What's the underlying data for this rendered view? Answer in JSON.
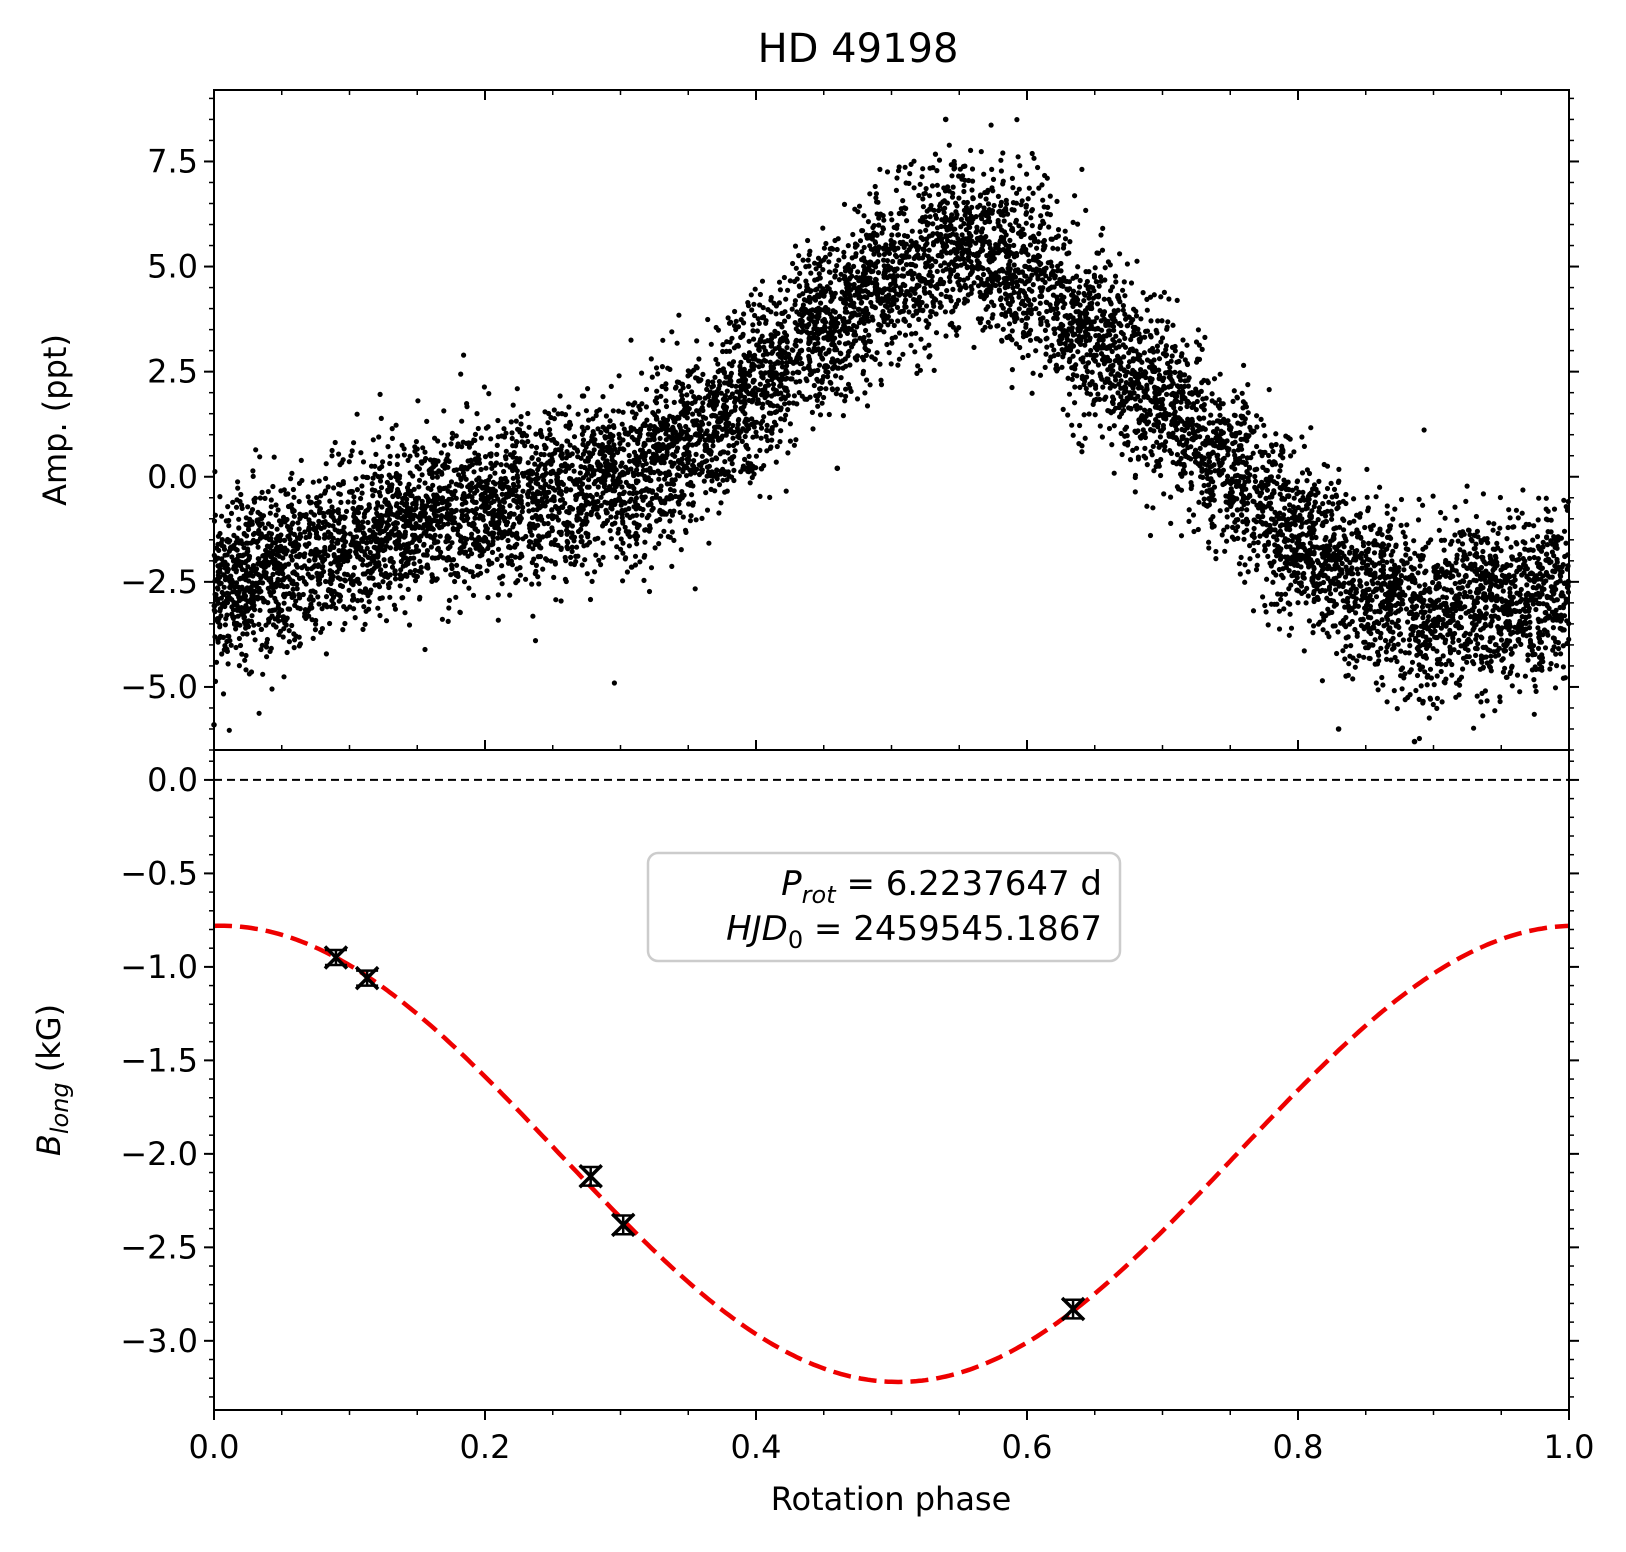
{
  "title": "HD 49198",
  "colors": {
    "points": "#000000",
    "fit": "#ee0000",
    "zero_line": "#000000",
    "box_edge": "#cccccc"
  },
  "chart_data": [
    {
      "type": "scatter",
      "panel": "top",
      "ylabel": "Amp. (ppt)",
      "xlim": [
        0.0,
        1.0
      ],
      "ylim": [
        -6.5,
        9.2
      ],
      "yticks": [
        -5.0,
        -2.5,
        0.0,
        2.5,
        5.0,
        7.5
      ],
      "ytick_labels": [
        "−5.0",
        "−2.5",
        "0.0",
        "2.5",
        "5.0",
        "7.5"
      ],
      "series": [
        {
          "marker": "dot",
          "profile_x": [
            0.0,
            0.05,
            0.1,
            0.15,
            0.2,
            0.25,
            0.3,
            0.35,
            0.4,
            0.45,
            0.5,
            0.55,
            0.6,
            0.65,
            0.7,
            0.75,
            0.8,
            0.85,
            0.9,
            0.95,
            1.0
          ],
          "profile_y_mean": [
            -2.6,
            -2.2,
            -1.6,
            -1.0,
            -0.6,
            -0.5,
            -0.1,
            0.7,
            2.0,
            3.6,
            4.8,
            5.5,
            4.9,
            3.4,
            1.8,
            0.2,
            -1.5,
            -2.6,
            -3.2,
            -3.0,
            -2.7
          ],
          "scatter_sd_ppt": 1.0,
          "n_points": 9000,
          "extremes": [
            [
              0.54,
              8.5
            ],
            [
              0.886,
              -6.3
            ],
            [
              0.83,
              -6.0
            ],
            [
              0.0,
              -5.9
            ],
            [
              0.46,
              0.2
            ]
          ]
        }
      ]
    },
    {
      "type": "scatter",
      "panel": "bottom",
      "xlabel": "Rotation phase",
      "ylabel_main": "B",
      "ylabel_sub": "long",
      "ylabel_unit": " (kG)",
      "xlim": [
        0.0,
        1.0
      ],
      "ylim": [
        -3.37,
        0.16
      ],
      "xticks": [
        0.0,
        0.2,
        0.4,
        0.6,
        0.8,
        1.0
      ],
      "xtick_labels": [
        "0.0",
        "0.2",
        "0.4",
        "0.6",
        "0.8",
        "1.0"
      ],
      "yticks": [
        0.0,
        -0.5,
        -1.0,
        -1.5,
        -2.0,
        -2.5,
        -3.0
      ],
      "ytick_labels": [
        "0.0",
        "−0.5",
        "−1.0",
        "−1.5",
        "−2.0",
        "−2.5",
        "−3.0"
      ],
      "reference_line": {
        "y": 0.0,
        "style": "dashed"
      },
      "series": [
        {
          "marker": "x-with-errorbars",
          "x": [
            0.09,
            0.113,
            0.278,
            0.302,
            0.634
          ],
          "y": [
            -0.95,
            -1.06,
            -2.12,
            -2.38,
            -2.83
          ],
          "yerr": [
            0.04,
            0.04,
            0.05,
            0.05,
            0.05
          ]
        },
        {
          "style": "dashed-line",
          "model": "cosine",
          "offset_kG": -2.0,
          "amplitude_kG": 1.22,
          "phase_of_minimum": 0.505
        }
      ],
      "annotation": {
        "line1_var": "P",
        "line1_sub": "rot",
        "line1_rest": " = 6.2237647 d",
        "line2_var": "HJD",
        "line2_sub": "0",
        "line2_rest": " = 2459545.1867",
        "box": "rounded, top-center"
      }
    }
  ]
}
